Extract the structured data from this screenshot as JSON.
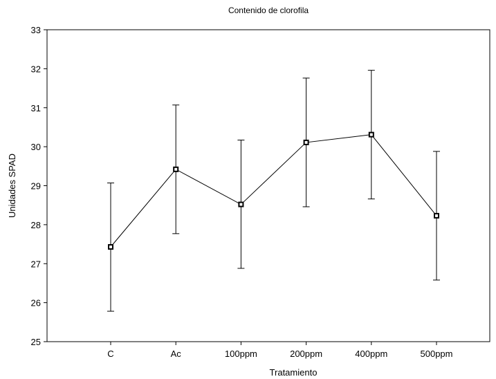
{
  "chart_data": {
    "type": "line",
    "title": "Contenido de clorofila",
    "xlabel": "Tratamiento",
    "ylabel": "Unidades SPAD",
    "categories": [
      "C",
      "Ac",
      "100ppm",
      "200ppm",
      "400ppm",
      "500ppm"
    ],
    "ylim": [
      25,
      33
    ],
    "yticks": [
      25,
      26,
      27,
      28,
      29,
      30,
      31,
      32,
      33
    ],
    "grid": false,
    "series": [
      {
        "values": [
          27.43,
          29.42,
          28.52,
          30.11,
          30.31,
          28.23
        ],
        "error_low": [
          25.78,
          27.77,
          26.88,
          28.46,
          28.66,
          26.58
        ],
        "error_high": [
          29.07,
          31.07,
          30.17,
          31.76,
          31.96,
          29.88
        ]
      }
    ]
  }
}
